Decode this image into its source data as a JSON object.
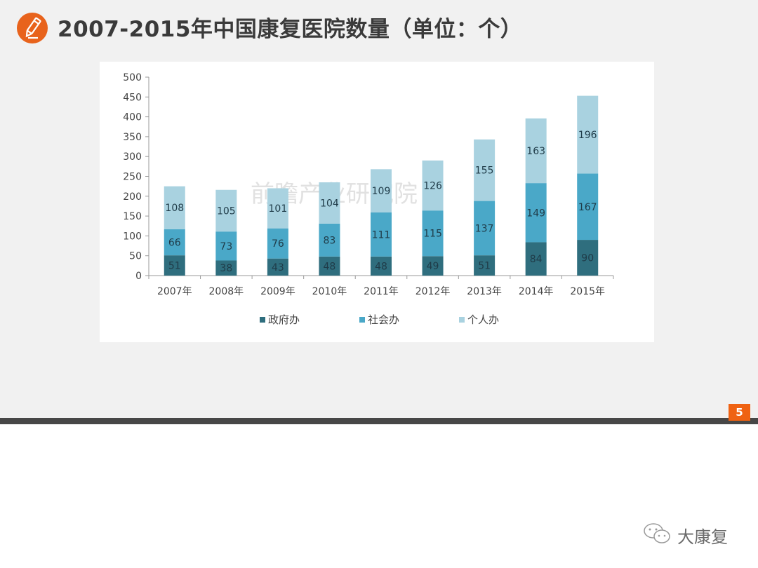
{
  "slide": {
    "title": "2007-2015年中国康复医院数量（单位：个）",
    "page_number": "5",
    "icon": "pencil-icon",
    "watermark": "前瞻产业研究院",
    "footer_account": "大康复",
    "footer_icon": "wechat-icon"
  },
  "colors": {
    "accent_orange": "#e8631c",
    "government": "#2f6e7e",
    "social": "#4aa8c8",
    "individual": "#a9d2e0"
  },
  "chart_data": {
    "type": "bar",
    "stacked": true,
    "title": "2007-2015年中国康复医院数量（单位：个）",
    "xlabel": "",
    "ylabel": "",
    "categories": [
      "2007年",
      "2008年",
      "2009年",
      "2010年",
      "2011年",
      "2012年",
      "2013年",
      "2014年",
      "2015年"
    ],
    "series": [
      {
        "name": "政府办",
        "color": "#2f6e7e",
        "values": [
          51,
          38,
          43,
          48,
          48,
          49,
          51,
          84,
          90
        ]
      },
      {
        "name": "社会办",
        "color": "#4aa8c8",
        "values": [
          66,
          73,
          76,
          83,
          111,
          115,
          137,
          149,
          167
        ]
      },
      {
        "name": "个人办",
        "color": "#a9d2e0",
        "values": [
          108,
          105,
          101,
          104,
          109,
          126,
          155,
          163,
          196
        ]
      }
    ],
    "ylim": [
      0,
      500
    ],
    "yticks": [
      0,
      50,
      100,
      150,
      200,
      250,
      300,
      350,
      400,
      450,
      500
    ],
    "grid": false,
    "legend_position": "bottom",
    "data_labels": true
  }
}
